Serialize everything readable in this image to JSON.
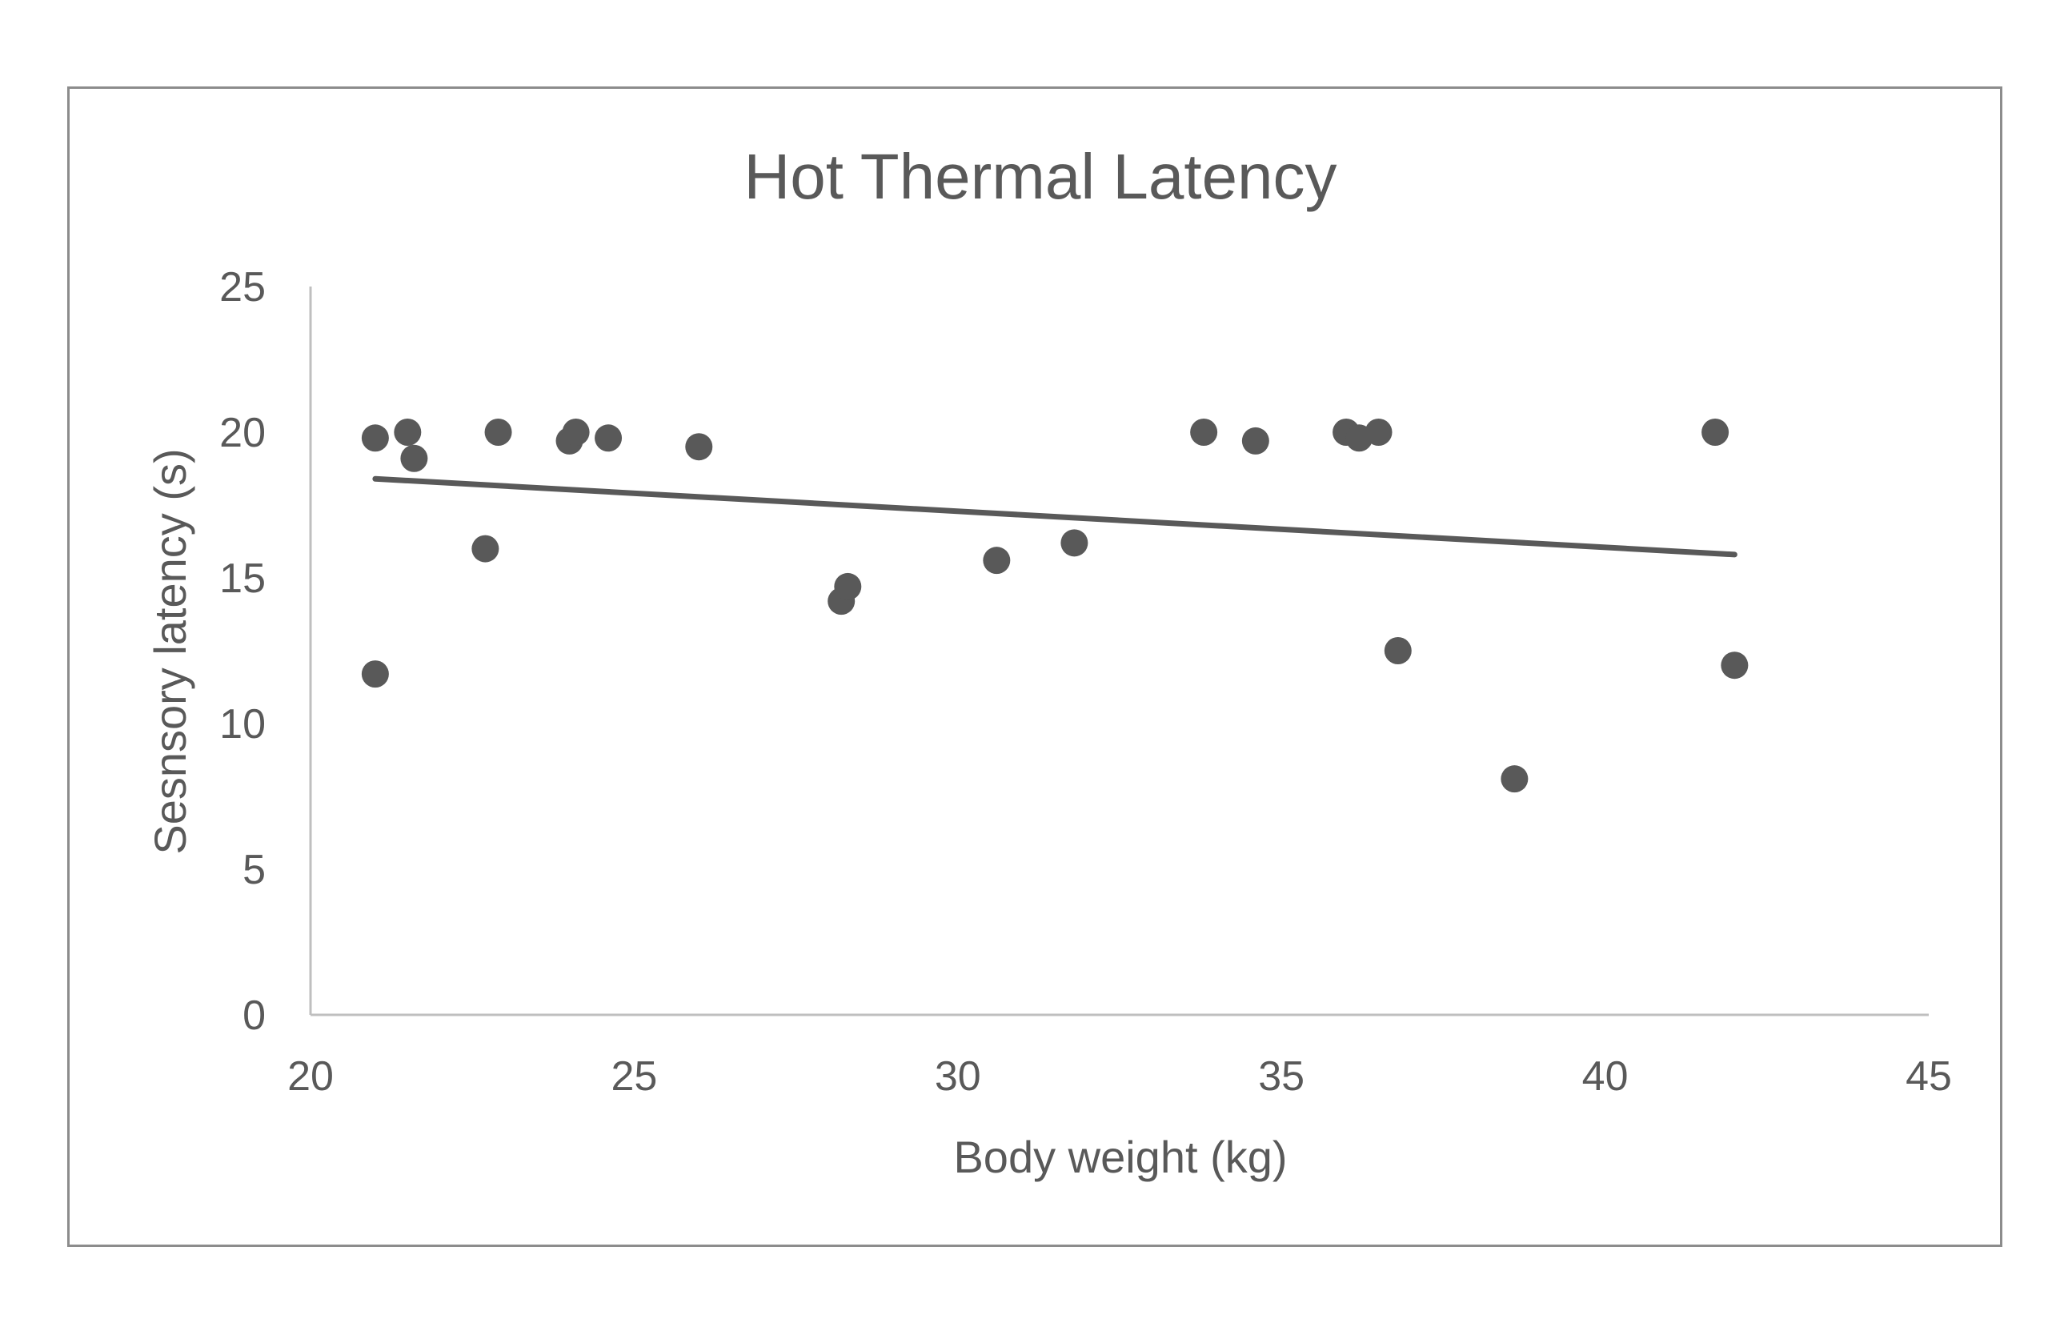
{
  "chart_data": {
    "type": "scatter",
    "title": "Hot Thermal Latency",
    "xlabel": "Body weight (kg)",
    "ylabel": "Sesnsory latency (s)",
    "xlim": [
      20,
      45
    ],
    "ylim": [
      0,
      25
    ],
    "x_ticks": [
      20,
      25,
      30,
      35,
      40,
      45
    ],
    "y_ticks": [
      0,
      5,
      10,
      15,
      20,
      25
    ],
    "grid": false,
    "legend": "none",
    "colors": {
      "points": "#595959",
      "trendline": "#595959",
      "axis": "#bfbfbf",
      "text": "#595959",
      "border": "#8c8c8c"
    },
    "series": [
      {
        "points": [
          {
            "x": 21.0,
            "y": 19.8
          },
          {
            "x": 21.0,
            "y": 11.7
          },
          {
            "x": 21.5,
            "y": 20.0
          },
          {
            "x": 21.6,
            "y": 19.1
          },
          {
            "x": 22.7,
            "y": 16.0
          },
          {
            "x": 22.9,
            "y": 20.0
          },
          {
            "x": 24.0,
            "y": 19.7
          },
          {
            "x": 24.1,
            "y": 20.0
          },
          {
            "x": 24.6,
            "y": 19.8
          },
          {
            "x": 26.0,
            "y": 19.5
          },
          {
            "x": 28.2,
            "y": 14.2
          },
          {
            "x": 28.3,
            "y": 14.7
          },
          {
            "x": 30.6,
            "y": 15.6
          },
          {
            "x": 31.8,
            "y": 16.2
          },
          {
            "x": 33.8,
            "y": 20.0
          },
          {
            "x": 34.6,
            "y": 19.7
          },
          {
            "x": 36.0,
            "y": 20.0
          },
          {
            "x": 36.2,
            "y": 19.8
          },
          {
            "x": 36.5,
            "y": 20.0
          },
          {
            "x": 36.8,
            "y": 12.5
          },
          {
            "x": 38.6,
            "y": 8.1
          },
          {
            "x": 41.7,
            "y": 20.0
          },
          {
            "x": 42.0,
            "y": 12.0
          }
        ]
      }
    ],
    "trendline": {
      "type": "linear",
      "from": {
        "x": 21.0,
        "y": 18.4
      },
      "to": {
        "x": 42.0,
        "y": 15.8
      }
    }
  }
}
